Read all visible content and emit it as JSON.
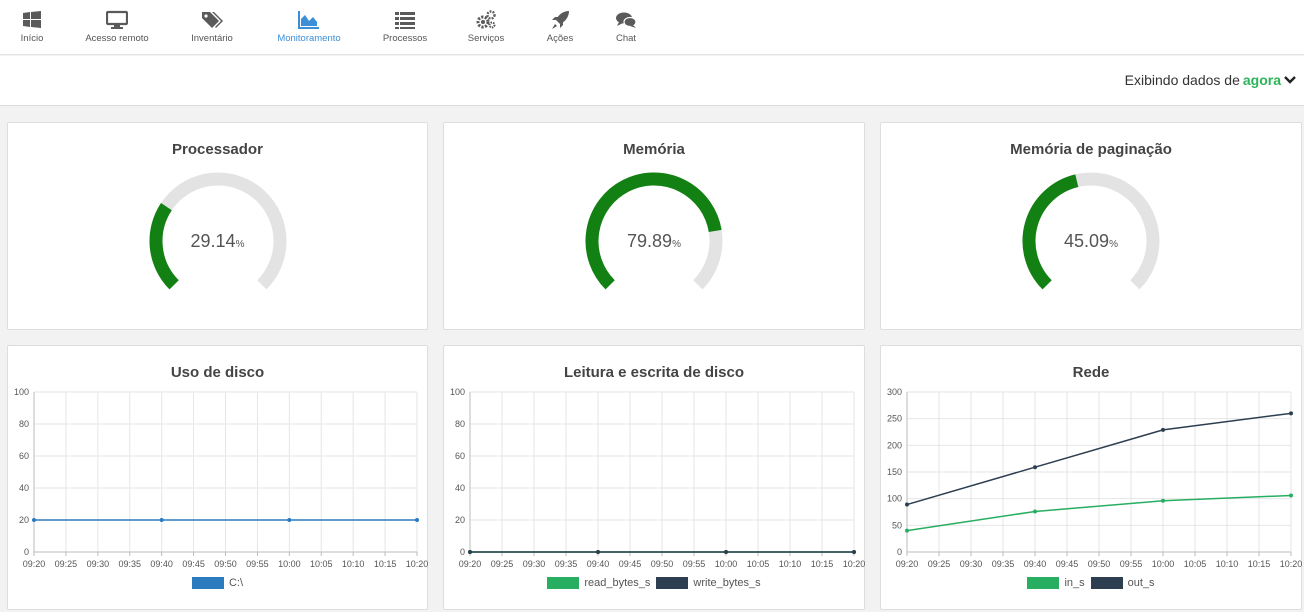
{
  "nav": {
    "items": [
      {
        "label": "Início",
        "icon": "windows-icon"
      },
      {
        "label": "Acesso remoto",
        "icon": "monitor-icon"
      },
      {
        "label": "Inventário",
        "icon": "tags-icon"
      },
      {
        "label": "Monitoramento",
        "icon": "area-chart-icon",
        "active": true
      },
      {
        "label": "Processos",
        "icon": "list-icon"
      },
      {
        "label": "Serviços",
        "icon": "gears-icon"
      },
      {
        "label": "Ações",
        "icon": "rocket-icon"
      },
      {
        "label": "Chat",
        "icon": "chat-bubbles-icon"
      }
    ]
  },
  "period": {
    "prefix": "Exibindo dados de",
    "value": "agora"
  },
  "colors": {
    "gauge_fill": "#128012",
    "gauge_track": "#e3e3e3",
    "accent": "#2db35a",
    "disk_line": "#2b7bbf",
    "green_series": "#27ae60",
    "dark_series": "#2c3e50",
    "nav_active": "#3a8fd8"
  },
  "gauges": [
    {
      "title": "Processador",
      "value": 29.14,
      "value_text": "29.14",
      "unit": "%"
    },
    {
      "title": "Memória",
      "value": 79.89,
      "value_text": "79.89",
      "unit": "%"
    },
    {
      "title": "Memória de paginação",
      "value": 45.09,
      "value_text": "45.09",
      "unit": "%"
    }
  ],
  "chart_data": [
    {
      "type": "line",
      "title": "Uso de disco",
      "x": [
        "09:20",
        "09:25",
        "09:30",
        "09:35",
        "09:40",
        "09:45",
        "09:50",
        "09:55",
        "10:00",
        "10:05",
        "10:10",
        "10:15",
        "10:20"
      ],
      "ylim": [
        0,
        100
      ],
      "yticks": [
        0,
        20,
        40,
        60,
        80,
        100
      ],
      "grid": true,
      "legend": "bottom",
      "series": [
        {
          "name": "C:\\",
          "color": "#2b7bbf",
          "points": [
            [
              "09:20",
              20
            ],
            [
              "09:40",
              20
            ],
            [
              "10:00",
              20
            ],
            [
              "10:20",
              20
            ]
          ]
        }
      ]
    },
    {
      "type": "line",
      "title": "Leitura e escrita de disco",
      "x": [
        "09:20",
        "09:25",
        "09:30",
        "09:35",
        "09:40",
        "09:45",
        "09:50",
        "09:55",
        "10:00",
        "10:05",
        "10:10",
        "10:15",
        "10:20"
      ],
      "ylim": [
        0,
        100
      ],
      "yticks": [
        0,
        20,
        40,
        60,
        80,
        100
      ],
      "grid": true,
      "legend": "bottom",
      "series": [
        {
          "name": "read_bytes_s",
          "color": "#27ae60",
          "points": [
            [
              "09:20",
              0
            ],
            [
              "09:40",
              0
            ],
            [
              "10:00",
              0
            ],
            [
              "10:20",
              0
            ]
          ]
        },
        {
          "name": "write_bytes_s",
          "color": "#2c3e50",
          "points": [
            [
              "09:20",
              0
            ],
            [
              "09:40",
              0
            ],
            [
              "10:00",
              0
            ],
            [
              "10:20",
              0
            ]
          ]
        }
      ]
    },
    {
      "type": "line",
      "title": "Rede",
      "x": [
        "09:20",
        "09:25",
        "09:30",
        "09:35",
        "09:40",
        "09:45",
        "09:50",
        "09:55",
        "10:00",
        "10:05",
        "10:10",
        "10:15",
        "10:20"
      ],
      "ylim": [
        0,
        300
      ],
      "yticks": [
        0,
        50,
        100,
        150,
        200,
        250,
        300
      ],
      "grid": true,
      "legend": "bottom",
      "series": [
        {
          "name": "in_s",
          "color": "#27ae60",
          "points": [
            [
              "09:20",
              40
            ],
            [
              "09:40",
              76
            ],
            [
              "10:00",
              96
            ],
            [
              "10:20",
              106
            ]
          ]
        },
        {
          "name": "out_s",
          "color": "#2c3e50",
          "points": [
            [
              "09:20",
              89
            ],
            [
              "09:40",
              159
            ],
            [
              "10:00",
              229
            ],
            [
              "10:20",
              260
            ]
          ]
        }
      ]
    }
  ]
}
